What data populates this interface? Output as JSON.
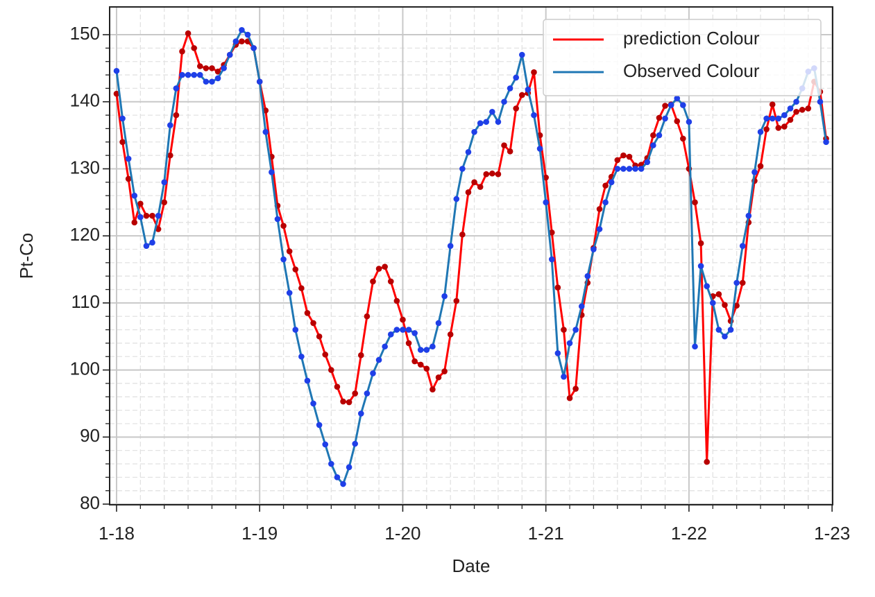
{
  "chart_data": {
    "type": "line",
    "xlabel": "Date",
    "ylabel": "Pt-Co",
    "x": [
      0,
      1,
      2,
      3,
      4,
      5,
      6,
      7,
      8,
      9,
      10,
      11,
      12,
      13,
      14,
      15,
      16,
      17,
      18,
      19,
      20,
      21,
      22,
      23,
      24,
      25,
      26,
      27,
      28,
      29,
      30,
      31,
      32,
      33,
      34,
      35,
      36,
      37,
      38,
      39,
      40,
      41,
      42,
      43,
      44,
      45,
      46,
      47,
      48,
      49,
      50,
      51,
      52,
      53,
      54,
      55,
      56,
      57,
      58,
      59,
      60,
      61,
      62,
      63,
      64,
      65,
      66,
      67,
      68,
      69,
      70,
      71,
      72,
      73,
      74,
      75,
      76,
      77,
      78,
      79,
      80,
      81,
      82,
      83,
      84,
      85,
      86,
      87,
      88,
      89,
      90,
      91,
      92,
      93,
      94,
      95,
      96,
      97,
      98,
      99,
      100,
      101,
      102,
      103,
      104,
      105,
      106,
      107,
      108,
      109,
      110,
      111,
      112,
      113,
      114,
      115,
      116,
      117,
      118,
      119
    ],
    "series": [
      {
        "name": "prediction Colour",
        "color": "#ff0000",
        "marker_color": "#b80000",
        "values": [
          141.2,
          134,
          128.5,
          122,
          124.8,
          123,
          123,
          121,
          125,
          132,
          138,
          147.5,
          150.2,
          148,
          145.3,
          145,
          145,
          144.5,
          145.5,
          147,
          148.5,
          149,
          149,
          148,
          143,
          138.7,
          131.8,
          124.5,
          121.5,
          117.7,
          115,
          112.2,
          108.5,
          107,
          105,
          102.3,
          100,
          97.5,
          95.3,
          95.2,
          96.5,
          102.2,
          108,
          113.2,
          115.1,
          115.4,
          113.2,
          110.3,
          107.5,
          104,
          101.3,
          100.8,
          100.2,
          97.1,
          98.9,
          99.8,
          105.3,
          110.3,
          120.2,
          126.5,
          128,
          127.3,
          129.2,
          129.3,
          129.2,
          133.5,
          132.6,
          139,
          141,
          141.3,
          144.4,
          135,
          128.7,
          120.5,
          112.3,
          106,
          95.8,
          97.2,
          108.2,
          113,
          118.2,
          124,
          127.5,
          128.8,
          131.3,
          132,
          131.8,
          130.5,
          130.6,
          131.6,
          135,
          137.6,
          139.4,
          139.6,
          137.1,
          134.5,
          130,
          125,
          118.9,
          86.3,
          111,
          111.3,
          109.7,
          107.3,
          109.6,
          113,
          122,
          128.2,
          130.4,
          135.9,
          139.6,
          136.1,
          136.3,
          137.3,
          138.5,
          138.8,
          139,
          143,
          141.5,
          134.5
        ]
      },
      {
        "name": "Observed Colour",
        "color": "#1f77b4",
        "marker_color": "#1f3fe8",
        "values": [
          144.6,
          137.5,
          131.5,
          126,
          122.8,
          118.5,
          119,
          123,
          128,
          136.5,
          142,
          144,
          144,
          144,
          144,
          143,
          143,
          143.5,
          145,
          147,
          149,
          150.7,
          150,
          148,
          143,
          135.5,
          129.5,
          122.5,
          116.5,
          111.5,
          106,
          102,
          98.4,
          95,
          91.8,
          88.9,
          86,
          84,
          83,
          85.5,
          89,
          93.5,
          96.5,
          99.5,
          101.5,
          103.5,
          105.3,
          106,
          106,
          106,
          105.5,
          103,
          103,
          103.5,
          107,
          111,
          118.5,
          125.5,
          130,
          132.5,
          135.5,
          136.8,
          137,
          138.5,
          137,
          140,
          142,
          143.6,
          147,
          141.8,
          138,
          133,
          125,
          116.5,
          102.5,
          99,
          104,
          106,
          109.5,
          114,
          118,
          121,
          125,
          128,
          130,
          130,
          130,
          130,
          130,
          131,
          133.5,
          135,
          137.5,
          139.5,
          140.5,
          139.5,
          137,
          103.5,
          115.5,
          112.5,
          110,
          106,
          105,
          106,
          113,
          118.5,
          123,
          129.5,
          135.5,
          137.5,
          137.5,
          137.5,
          138,
          139,
          140,
          142,
          144.5,
          145,
          140,
          134
        ]
      }
    ],
    "xlim": [
      -1.16,
      120.1
    ],
    "xticks": [
      {
        "value": 0,
        "label": "1-18"
      },
      {
        "value": 24,
        "label": "1-19"
      },
      {
        "value": 48,
        "label": "1-20"
      },
      {
        "value": 72,
        "label": "1-21"
      },
      {
        "value": 96,
        "label": "1-22"
      },
      {
        "value": 120,
        "label": "1-23"
      }
    ],
    "ylim": [
      79.9,
      154.14
    ],
    "yticks": [
      80,
      90,
      100,
      110,
      120,
      130,
      140,
      150
    ],
    "grid": true,
    "minor_grid": true,
    "markers": true,
    "legend": "upper right"
  }
}
